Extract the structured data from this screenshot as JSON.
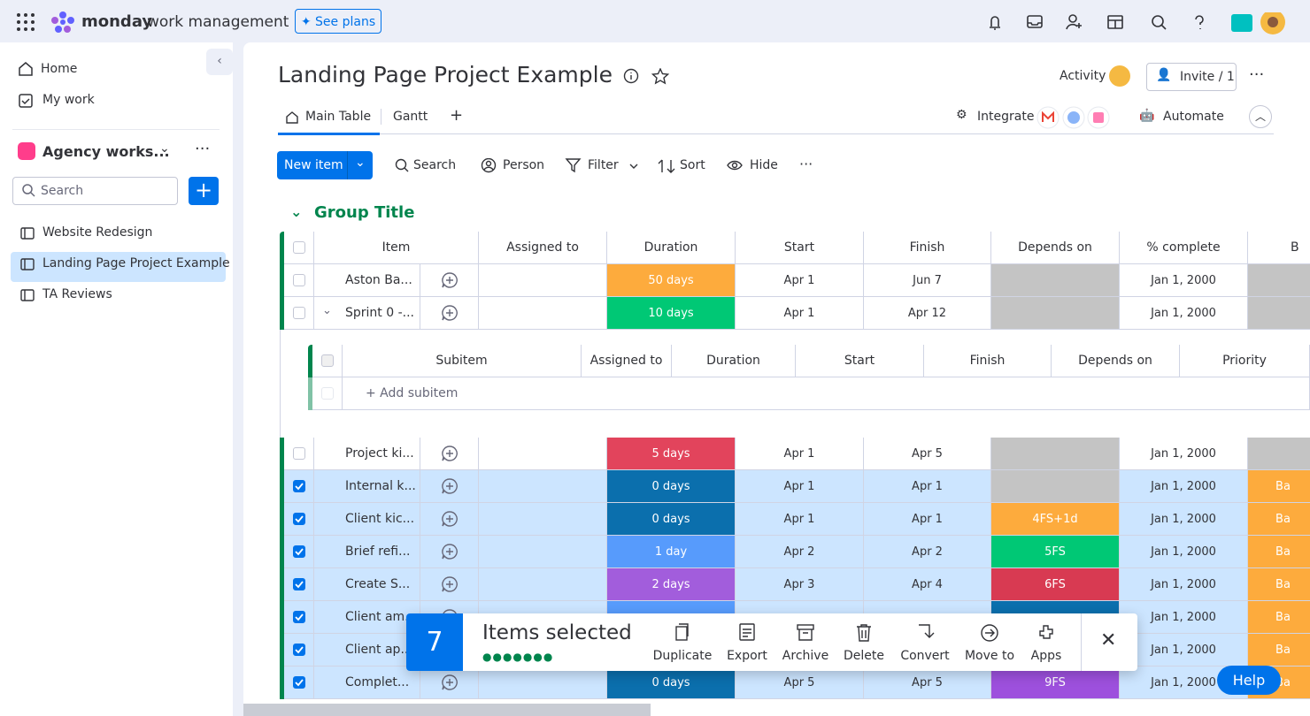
{
  "topbar": {
    "brand": "monday",
    "brand_suffix": "work management",
    "see_plans": "See plans"
  },
  "sidebar": {
    "home": "Home",
    "my_work": "My work",
    "workspace": "Agency works...",
    "search_placeholder": "Search",
    "boards": [
      "Website Redesign",
      "Landing Page Project Example",
      "TA Reviews"
    ],
    "active_board": 1
  },
  "header": {
    "title": "Landing Page Project Example",
    "activity": "Activity",
    "invite": "Invite / 1",
    "tabs": [
      "Main Table",
      "Gantt"
    ],
    "integrate": "Integrate",
    "automate": "Automate"
  },
  "toolbar": {
    "new_item": "New item",
    "search": "Search",
    "person": "Person",
    "filter": "Filter",
    "sort": "Sort",
    "hide": "Hide"
  },
  "group": {
    "title": "Group Title",
    "color": "#00854d",
    "columns": [
      "Item",
      "Assigned to",
      "Duration",
      "Start",
      "Finish",
      "Depends on",
      "% complete",
      "B"
    ],
    "rows": [
      {
        "name": "Aston Ba...",
        "checked": false,
        "duration": "50 days",
        "duration_color": "#fdab3d",
        "start": "Apr 1",
        "finish": "Jun 7",
        "depends_color": "#c4c4c4",
        "complete": "Jan 1, 2000",
        "last_color": "#c4c4c4"
      },
      {
        "name": "Sprint 0 -...",
        "checked": false,
        "expanded": true,
        "duration": "10 days",
        "duration_color": "#00c875",
        "start": "Apr 1",
        "finish": "Apr 12",
        "depends_color": "#c4c4c4",
        "complete": "Jan 1, 2000",
        "last_color": "#c4c4c4"
      },
      {
        "name": "Project ki...",
        "checked": false,
        "duration": "5 days",
        "duration_color": "#e2445c",
        "start": "Apr 1",
        "finish": "Apr 5",
        "depends_color": "#c4c4c4",
        "complete": "Jan 1, 2000",
        "last_color": "#c4c4c4"
      },
      {
        "name": "Internal k...",
        "checked": true,
        "duration": "0 days",
        "duration_color": "#0b6fad",
        "start": "Apr 1",
        "finish": "Apr 1",
        "depends_color": "#c4c4c4",
        "complete": "Jan 1, 2000",
        "last": "Ba",
        "last_color": "#fdab3d"
      },
      {
        "name": "Client kic...",
        "checked": true,
        "duration": "0 days",
        "duration_color": "#0b6fad",
        "start": "Apr 1",
        "finish": "Apr 1",
        "depends": "4FS+1d",
        "depends_color": "#fdab3d",
        "complete": "Jan 1, 2000",
        "last": "Ba",
        "last_color": "#fdab3d"
      },
      {
        "name": "Brief refi...",
        "checked": true,
        "duration": "1 day",
        "duration_color": "#579bfc",
        "start": "Apr 2",
        "finish": "Apr 2",
        "depends": "5FS",
        "depends_color": "#00c875",
        "complete": "Jan 1, 2000",
        "last": "Ba",
        "last_color": "#fdab3d"
      },
      {
        "name": "Create S...",
        "checked": true,
        "duration": "2 days",
        "duration_color": "#a25ddc",
        "start": "Apr 3",
        "finish": "Apr 4",
        "depends": "6FS",
        "depends_color": "#d83a52",
        "complete": "Jan 1, 2000",
        "last": "Ba",
        "last_color": "#fdab3d"
      },
      {
        "name": "Client am...",
        "checked": true,
        "duration_color": "#579bfc",
        "depends_color": "#0b6fad",
        "complete": "Jan 1, 2000",
        "last": "Ba",
        "last_color": "#fdab3d"
      },
      {
        "name": "Client ap...",
        "checked": true,
        "duration_color": "#0b6fad",
        "depends_color": "#0b6fad",
        "complete": "Jan 1, 2000",
        "last": "Ba",
        "last_color": "#fdab3d"
      },
      {
        "name": "Complet...",
        "checked": true,
        "duration": "0 days",
        "duration_color": "#0b6fad",
        "start": "Apr 5",
        "finish": "Apr 5",
        "depends": "9FS",
        "depends_color": "#9d50dd",
        "complete": "Jan 1, 2000",
        "last": "Ba",
        "last_color": "#fdab3d"
      }
    ],
    "subitems": {
      "columns": [
        "Subitem",
        "Assigned to",
        "Duration",
        "Start",
        "Finish",
        "Depends on",
        "Priority"
      ],
      "add": "+ Add subitem"
    }
  },
  "selection": {
    "count": "7",
    "label": "Items selected",
    "actions": [
      "Duplicate",
      "Export",
      "Archive",
      "Delete",
      "Convert",
      "Move to",
      "Apps"
    ]
  },
  "help": "Help"
}
